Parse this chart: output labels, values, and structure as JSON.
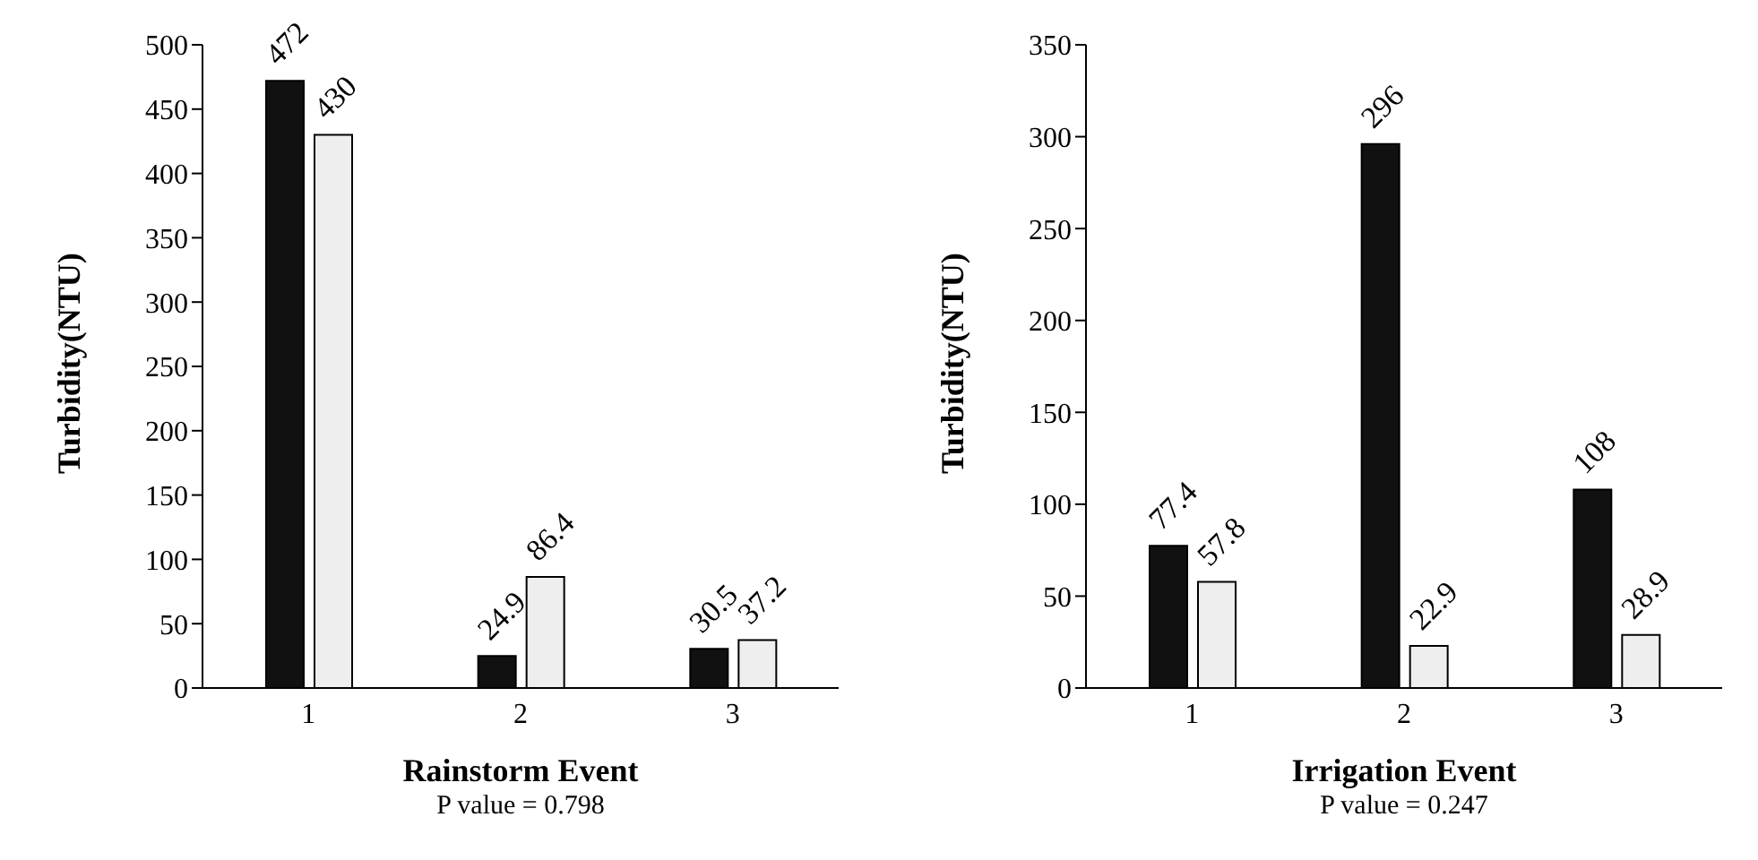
{
  "chart_data": [
    {
      "type": "bar",
      "categories": [
        "1",
        "2",
        "3"
      ],
      "series": [
        {
          "color": "#111111",
          "values": [
            472,
            24.9,
            30.5
          ]
        },
        {
          "color": "#eeeeee",
          "values": [
            430,
            86.4,
            37.2
          ]
        }
      ],
      "ylim": [
        0,
        500
      ],
      "yticks": [
        0,
        50,
        100,
        150,
        200,
        250,
        300,
        350,
        400,
        450,
        500
      ],
      "ylabel": "Turbidity(NTU)",
      "xlabel": "Rainstorm Event",
      "annotations": [
        "P value = 0.798"
      ],
      "data_labels": true,
      "grid": false,
      "legend": false
    },
    {
      "type": "bar",
      "categories": [
        "1",
        "2",
        "3"
      ],
      "series": [
        {
          "color": "#111111",
          "values": [
            77.4,
            296,
            108
          ]
        },
        {
          "color": "#eeeeee",
          "values": [
            57.8,
            22.9,
            28.9
          ]
        }
      ],
      "ylim": [
        0,
        350
      ],
      "yticks": [
        0,
        50,
        100,
        150,
        200,
        250,
        300,
        350
      ],
      "ylabel": "Turbidity(NTU)",
      "xlabel": "Irrigation Event",
      "annotations": [
        "P value = 0.247"
      ],
      "data_labels": true,
      "grid": false,
      "legend": false
    }
  ]
}
